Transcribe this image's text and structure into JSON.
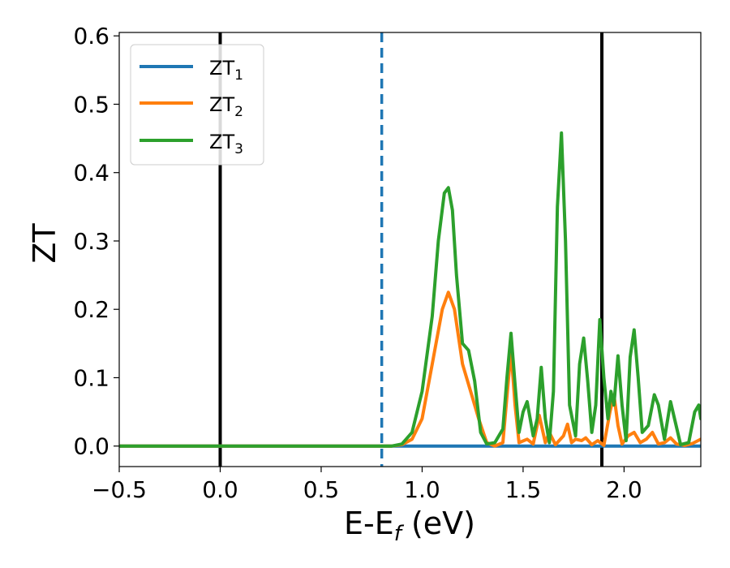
{
  "chart_data": {
    "type": "line",
    "xlabel_main": "E-E",
    "xlabel_sub": "f",
    "xlabel_unit": " (eV)",
    "ylabel": "ZT",
    "xlim": [
      -0.5,
      2.38
    ],
    "ylim": [
      -0.03,
      0.605
    ],
    "xticks": [
      -0.5,
      0.0,
      0.5,
      1.0,
      1.5,
      2.0
    ],
    "xtick_labels": [
      "−0.5",
      "0.0",
      "0.5",
      "1.0",
      "1.5",
      "2.0"
    ],
    "yticks": [
      0.0,
      0.1,
      0.2,
      0.3,
      0.4,
      0.5,
      0.6
    ],
    "ytick_labels": [
      "0.0",
      "0.1",
      "0.2",
      "0.3",
      "0.4",
      "0.5",
      "0.6"
    ],
    "grid": false,
    "legend_position": "top-left",
    "vlines": [
      {
        "x": 0.0,
        "style": "solid",
        "color": "#000000"
      },
      {
        "x": 0.8,
        "style": "dashed",
        "color": "#1f77b4"
      },
      {
        "x": 1.89,
        "style": "solid",
        "color": "#000000"
      }
    ],
    "series": [
      {
        "name": "ZT",
        "subscript": "1",
        "color": "#1f77b4",
        "points": [
          [
            -0.5,
            0
          ],
          [
            2.38,
            0
          ]
        ]
      },
      {
        "name": "ZT",
        "subscript": "2",
        "color": "#ff7f0e",
        "points": [
          [
            -0.5,
            0
          ],
          [
            0.85,
            0
          ],
          [
            0.9,
            0.002
          ],
          [
            0.95,
            0.01
          ],
          [
            1.0,
            0.04
          ],
          [
            1.05,
            0.12
          ],
          [
            1.1,
            0.2
          ],
          [
            1.13,
            0.225
          ],
          [
            1.16,
            0.2
          ],
          [
            1.2,
            0.12
          ],
          [
            1.25,
            0.07
          ],
          [
            1.28,
            0.04
          ],
          [
            1.32,
            0.005
          ],
          [
            1.36,
            0
          ],
          [
            1.4,
            0.005
          ],
          [
            1.44,
            0.14
          ],
          [
            1.46,
            0.06
          ],
          [
            1.48,
            0.005
          ],
          [
            1.52,
            0.01
          ],
          [
            1.55,
            0.003
          ],
          [
            1.58,
            0.045
          ],
          [
            1.61,
            0.005
          ],
          [
            1.63,
            0.02
          ],
          [
            1.66,
            0.002
          ],
          [
            1.7,
            0.015
          ],
          [
            1.72,
            0.032
          ],
          [
            1.74,
            0.005
          ],
          [
            1.76,
            0.01
          ],
          [
            1.79,
            0.008
          ],
          [
            1.81,
            0.012
          ],
          [
            1.84,
            0.002
          ],
          [
            1.87,
            0.008
          ],
          [
            1.9,
            0.001
          ],
          [
            1.93,
            0.05
          ],
          [
            1.95,
            0.075
          ],
          [
            1.97,
            0.03
          ],
          [
            1.99,
            0.003
          ],
          [
            2.02,
            0.015
          ],
          [
            2.05,
            0.02
          ],
          [
            2.08,
            0.005
          ],
          [
            2.11,
            0.01
          ],
          [
            2.14,
            0.02
          ],
          [
            2.17,
            0.003
          ],
          [
            2.2,
            0.005
          ],
          [
            2.23,
            0.012
          ],
          [
            2.26,
            0.003
          ],
          [
            2.3,
            0.001
          ],
          [
            2.34,
            0.004
          ],
          [
            2.38,
            0.01
          ]
        ]
      },
      {
        "name": "ZT",
        "subscript": "3",
        "color": "#2ca02c",
        "points": [
          [
            -0.5,
            0
          ],
          [
            0.85,
            0
          ],
          [
            0.9,
            0.003
          ],
          [
            0.95,
            0.02
          ],
          [
            1.0,
            0.08
          ],
          [
            1.05,
            0.19
          ],
          [
            1.08,
            0.3
          ],
          [
            1.11,
            0.37
          ],
          [
            1.13,
            0.378
          ],
          [
            1.15,
            0.345
          ],
          [
            1.17,
            0.25
          ],
          [
            1.2,
            0.15
          ],
          [
            1.23,
            0.14
          ],
          [
            1.26,
            0.095
          ],
          [
            1.29,
            0.02
          ],
          [
            1.32,
            0.003
          ],
          [
            1.36,
            0.005
          ],
          [
            1.4,
            0.025
          ],
          [
            1.42,
            0.1
          ],
          [
            1.44,
            0.165
          ],
          [
            1.46,
            0.09
          ],
          [
            1.48,
            0.02
          ],
          [
            1.5,
            0.05
          ],
          [
            1.52,
            0.065
          ],
          [
            1.55,
            0.015
          ],
          [
            1.57,
            0.04
          ],
          [
            1.59,
            0.115
          ],
          [
            1.61,
            0.04
          ],
          [
            1.63,
            0.005
          ],
          [
            1.65,
            0.08
          ],
          [
            1.67,
            0.35
          ],
          [
            1.69,
            0.458
          ],
          [
            1.71,
            0.3
          ],
          [
            1.73,
            0.06
          ],
          [
            1.76,
            0.015
          ],
          [
            1.78,
            0.12
          ],
          [
            1.8,
            0.158
          ],
          [
            1.82,
            0.095
          ],
          [
            1.84,
            0.02
          ],
          [
            1.86,
            0.06
          ],
          [
            1.88,
            0.185
          ],
          [
            1.9,
            0.1
          ],
          [
            1.92,
            0.04
          ],
          [
            1.935,
            0.08
          ],
          [
            1.95,
            0.06
          ],
          [
            1.97,
            0.132
          ],
          [
            1.99,
            0.06
          ],
          [
            2.01,
            0.008
          ],
          [
            2.03,
            0.13
          ],
          [
            2.05,
            0.17
          ],
          [
            2.07,
            0.1
          ],
          [
            2.09,
            0.02
          ],
          [
            2.12,
            0.03
          ],
          [
            2.15,
            0.075
          ],
          [
            2.17,
            0.06
          ],
          [
            2.2,
            0.01
          ],
          [
            2.23,
            0.065
          ],
          [
            2.25,
            0.04
          ],
          [
            2.28,
            0.002
          ],
          [
            2.32,
            0.005
          ],
          [
            2.35,
            0.05
          ],
          [
            2.37,
            0.06
          ],
          [
            2.38,
            0.04
          ]
        ]
      }
    ]
  }
}
